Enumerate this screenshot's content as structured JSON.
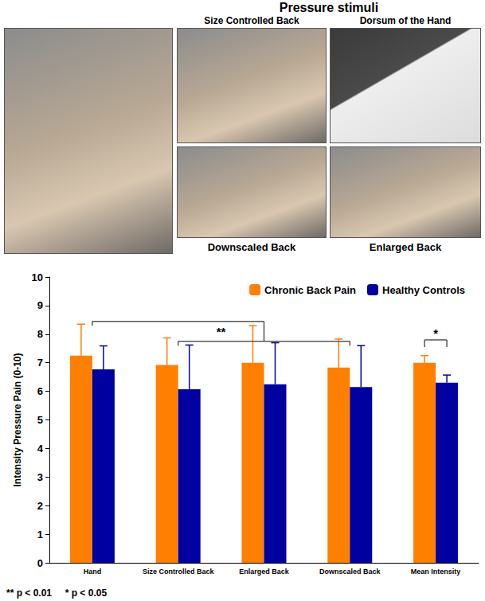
{
  "header": {
    "title": "Pressure stimuli",
    "photo_labels": {
      "top": [
        "Size Controlled Back",
        "Dorsum of the Hand"
      ],
      "bottom": [
        "Downscaled Back",
        "Enlarged Back"
      ]
    }
  },
  "chart_data": {
    "type": "bar",
    "y_label": "Intensity Pressure Pain (0-10)",
    "categories": [
      "Hand",
      "Size Controlled Back",
      "Enlarged Back",
      "Downscaled Back",
      "Mean Intensity"
    ],
    "series": [
      {
        "name": "Chronic Back Pain",
        "color": "#ff8000",
        "values": [
          7.25,
          6.92,
          7.0,
          6.83,
          7.0
        ],
        "errors": [
          1.1,
          0.95,
          1.3,
          1.0,
          0.25
        ]
      },
      {
        "name": "Healthy Controls",
        "color": "#0000a0",
        "values": [
          6.77,
          6.07,
          6.25,
          6.15,
          6.3
        ],
        "errors": [
          0.82,
          1.55,
          1.45,
          1.45,
          0.27
        ]
      }
    ],
    "ylim": [
      0,
      10
    ],
    "yticks": [
      0,
      1,
      2,
      3,
      4,
      5,
      6,
      7,
      8,
      9,
      10
    ],
    "grid": false,
    "legend": "upper right",
    "annotations": [
      {
        "text": "**",
        "categories": [
          "Hand",
          "Size Controlled Back",
          "Enlarged Back",
          "Downscaled Back"
        ]
      },
      {
        "text": "*",
        "categories": [
          "Mean Intensity"
        ]
      }
    ],
    "footnote": "** p < 0.01     * p < 0.05"
  }
}
